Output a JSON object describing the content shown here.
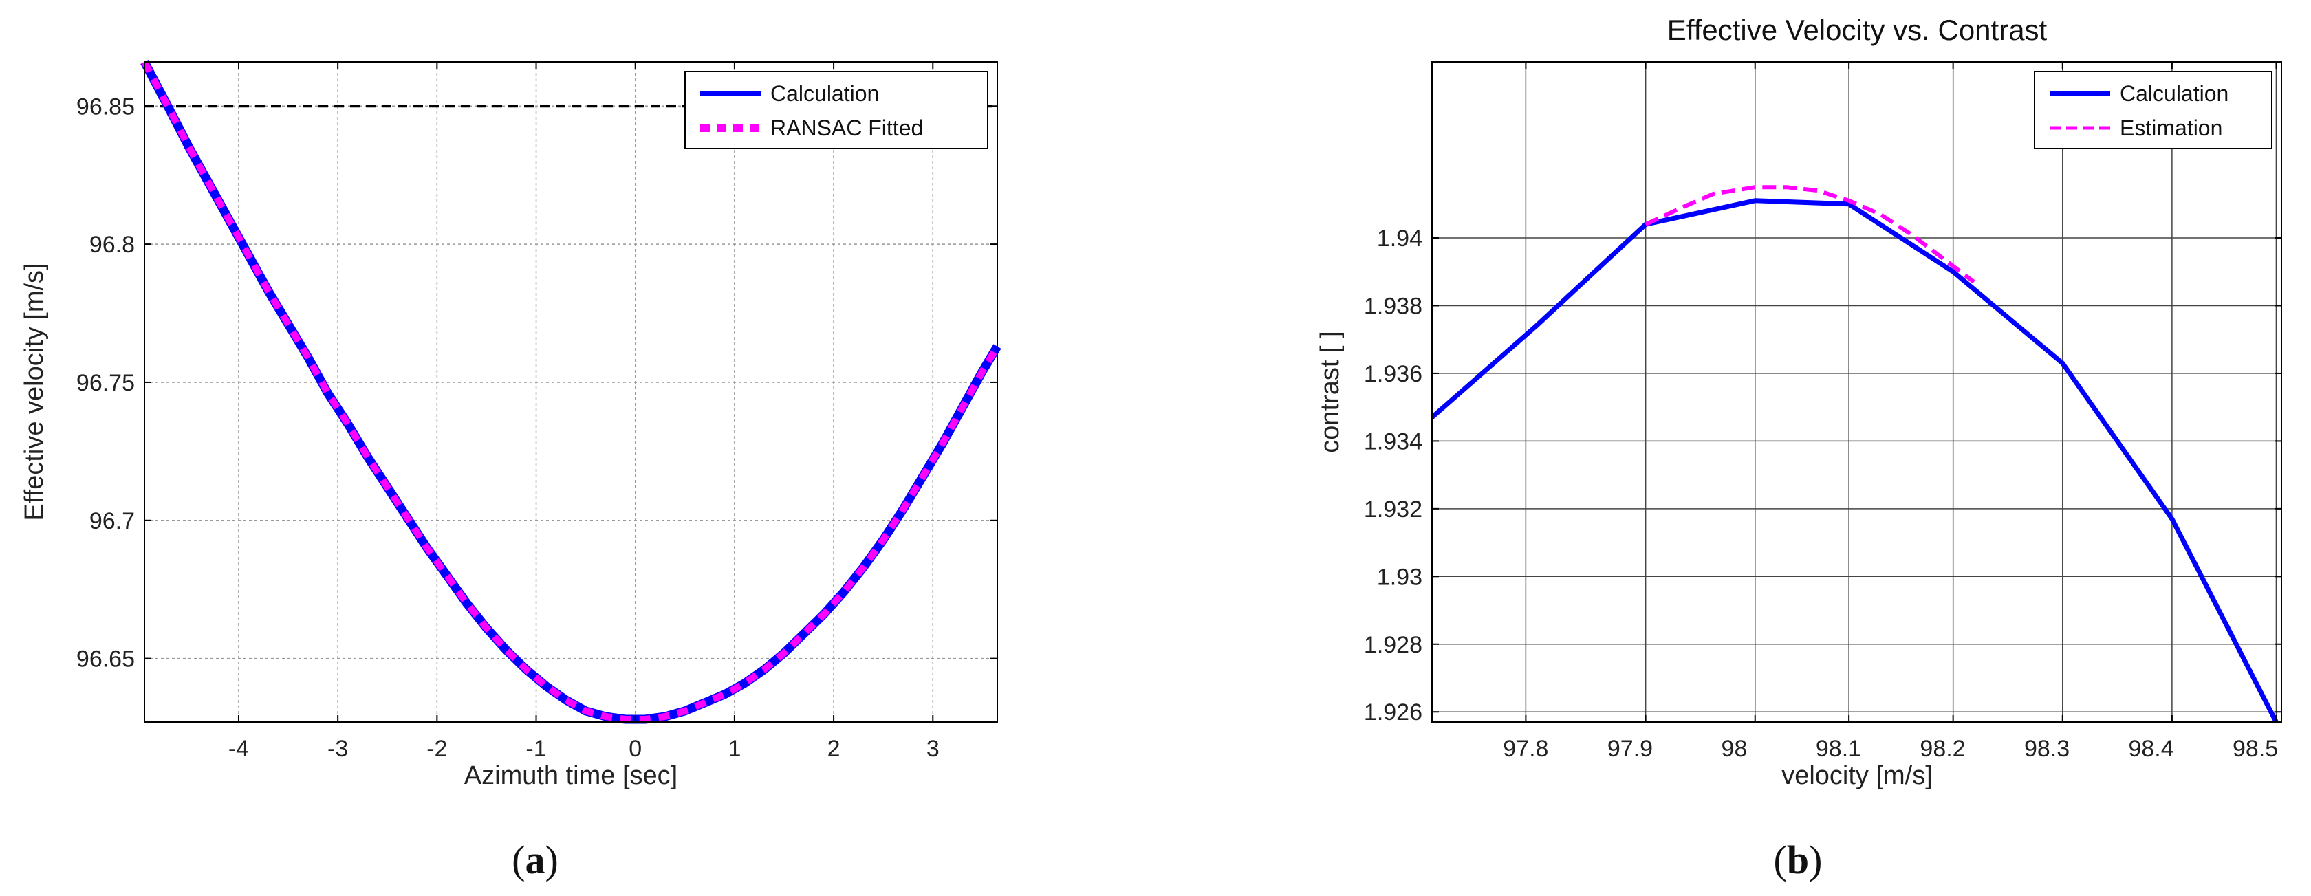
{
  "chart_data": [
    {
      "type": "line",
      "panel_label": "(a)",
      "title": "",
      "xlabel": "Azimuth time [sec]",
      "ylabel": "Effective velocity [m/s]",
      "xlim": [
        -4.95,
        3.65
      ],
      "ylim": [
        96.627,
        96.866
      ],
      "xticks": [
        -4,
        -3,
        -2,
        -1,
        0,
        1,
        2,
        3
      ],
      "yticks": [
        96.65,
        96.7,
        96.75,
        96.8,
        96.85
      ],
      "ytick_labels": [
        "96.65",
        "96.7",
        "96.75",
        "96.8",
        "96.85"
      ],
      "grid": true,
      "legend_position": "top-right",
      "reference_line": {
        "y": 96.85,
        "style": "dashed",
        "color": "#000000"
      },
      "series": [
        {
          "name": "Calculation",
          "color": "#0000ff",
          "style": "solid",
          "x": [
            -4.95,
            -4.7,
            -4.5,
            -4.3,
            -4.1,
            -3.9,
            -3.7,
            -3.5,
            -3.3,
            -3.1,
            -2.9,
            -2.7,
            -2.5,
            -2.3,
            -2.1,
            -1.9,
            -1.7,
            -1.5,
            -1.3,
            -1.1,
            -0.9,
            -0.7,
            -0.5,
            -0.3,
            -0.1,
            0.1,
            0.3,
            0.5,
            0.7,
            0.9,
            1.1,
            1.3,
            1.5,
            1.7,
            1.9,
            2.1,
            2.3,
            2.5,
            2.7,
            2.9,
            3.1,
            3.3,
            3.5,
            3.65
          ],
          "y": [
            96.866,
            96.849,
            96.835,
            96.822,
            96.809,
            96.796,
            96.783,
            96.771,
            96.759,
            96.746,
            96.735,
            96.723,
            96.712,
            96.701,
            96.69,
            96.68,
            96.67,
            96.661,
            96.653,
            96.646,
            96.64,
            96.635,
            96.631,
            96.629,
            96.628,
            96.628,
            96.629,
            96.631,
            96.634,
            96.637,
            96.641,
            96.646,
            96.652,
            96.659,
            96.666,
            96.674,
            96.683,
            96.693,
            96.704,
            96.716,
            96.728,
            96.741,
            96.754,
            96.763
          ]
        },
        {
          "name": "RANSAC Fitted",
          "color": "#ff00ff",
          "style": "dotted",
          "x": [
            -4.95,
            -4.7,
            -4.5,
            -4.3,
            -4.1,
            -3.9,
            -3.7,
            -3.5,
            -3.3,
            -3.1,
            -2.9,
            -2.7,
            -2.5,
            -2.3,
            -2.1,
            -1.9,
            -1.7,
            -1.5,
            -1.3,
            -1.1,
            -0.9,
            -0.7,
            -0.5,
            -0.3,
            -0.1,
            0.1,
            0.3,
            0.5,
            0.7,
            0.9,
            1.1,
            1.3,
            1.5,
            1.7,
            1.9,
            2.1,
            2.3,
            2.5,
            2.7,
            2.9,
            3.1,
            3.3,
            3.5,
            3.65
          ],
          "y": [
            96.866,
            96.849,
            96.835,
            96.822,
            96.809,
            96.796,
            96.783,
            96.771,
            96.759,
            96.746,
            96.735,
            96.723,
            96.712,
            96.701,
            96.69,
            96.68,
            96.67,
            96.661,
            96.653,
            96.646,
            96.64,
            96.635,
            96.631,
            96.629,
            96.628,
            96.628,
            96.629,
            96.631,
            96.634,
            96.637,
            96.641,
            96.646,
            96.652,
            96.659,
            96.666,
            96.674,
            96.683,
            96.693,
            96.704,
            96.716,
            96.728,
            96.741,
            96.754,
            96.763
          ]
        }
      ]
    },
    {
      "type": "line",
      "panel_label": "(b)",
      "title": "Effective Velocity vs. Contrast",
      "xlabel": "velocity [m/s]",
      "ylabel": "contrast [ ]",
      "xlim": [
        97.71,
        98.525
      ],
      "ylim": [
        1.9257,
        1.9452
      ],
      "xticks": [
        97.8,
        97.9,
        98,
        98.1,
        98.2,
        98.3,
        98.4,
        98.5
      ],
      "xtick_labels": [
        "97.8",
        "97.9",
        "98",
        "98.1",
        "98.2",
        "98.3",
        "98.4",
        "98.5"
      ],
      "yticks": [
        1.926,
        1.928,
        1.93,
        1.932,
        1.934,
        1.936,
        1.938,
        1.94
      ],
      "ytick_labels": [
        "1.926",
        "1.928",
        "1.93",
        "1.932",
        "1.934",
        "1.936",
        "1.938",
        "1.94"
      ],
      "vgrid_x": [
        97.8,
        97.915,
        98.02,
        98.11,
        98.21,
        98.315,
        98.42,
        98.52
      ],
      "grid": true,
      "legend_position": "top-right",
      "series": [
        {
          "name": "Calculation",
          "color": "#0000ff",
          "style": "solid",
          "x": [
            97.71,
            97.81,
            97.915,
            98.02,
            98.11,
            98.21,
            98.315,
            98.42,
            98.52
          ],
          "y": [
            1.9347,
            1.9374,
            1.9404,
            1.9411,
            1.941,
            1.939,
            1.9363,
            1.9317,
            1.9257
          ]
        },
        {
          "name": "Estimation",
          "color": "#ff00ff",
          "style": "dashed",
          "x": [
            97.915,
            97.95,
            97.98,
            98.02,
            98.05,
            98.08,
            98.11,
            98.14,
            98.17,
            98.2,
            98.23
          ],
          "y": [
            1.9404,
            1.9409,
            1.9413,
            1.9415,
            1.9415,
            1.9414,
            1.9411,
            1.9407,
            1.9401,
            1.9394,
            1.9387
          ]
        }
      ]
    }
  ]
}
